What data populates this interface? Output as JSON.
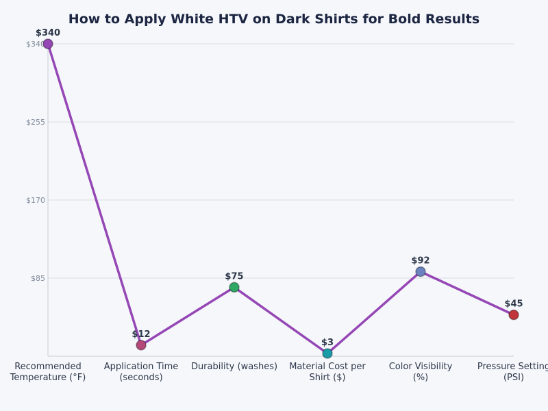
{
  "chart_data": {
    "type": "line",
    "title": "How to Apply White HTV on Dark Shirts for Bold Results",
    "xlabel": "",
    "ylabel": "",
    "categories": [
      [
        "Recommended",
        "Temperature (°F)"
      ],
      [
        "Application Time",
        "(seconds)"
      ],
      [
        "Durability (washes)"
      ],
      [
        "Material Cost per",
        "Shirt ($)"
      ],
      [
        "Color Visibility",
        "(%)"
      ],
      [
        "Pressure Setting",
        "(PSI)"
      ]
    ],
    "values": [
      340,
      12,
      75,
      3,
      92,
      45
    ],
    "data_labels": [
      "$340",
      "$12",
      "$75",
      "$3",
      "$92",
      "$45"
    ],
    "ylim": [
      0,
      340
    ],
    "yticks": [
      85,
      170,
      255,
      340
    ],
    "ytick_labels": [
      "$85",
      "$170",
      "$255",
      "$340"
    ],
    "grid": true,
    "line_color": "#9547b5",
    "marker_colors": [
      "#9547b5",
      "#b5487a",
      "#2fa866",
      "#1a9ba8",
      "#6a82bf",
      "#c0353a"
    ]
  }
}
